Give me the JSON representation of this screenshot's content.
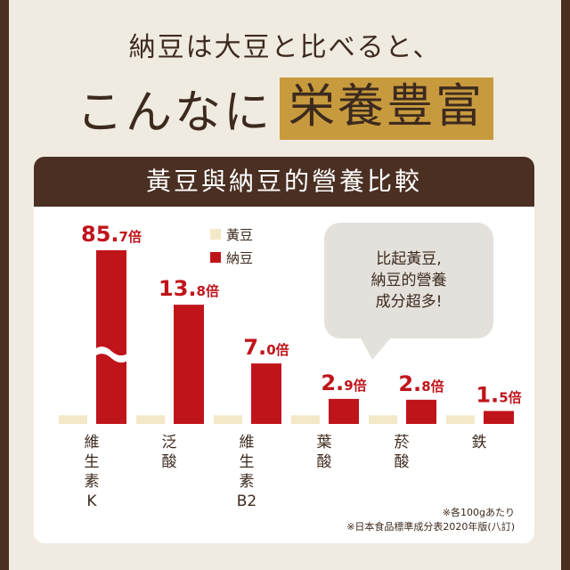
{
  "headline": {
    "line1": "納豆は大豆と比べると、",
    "line2_plain": "こんなに",
    "line2_highlight": "栄養豊富"
  },
  "card": {
    "title": "黃豆與納豆的營養比較"
  },
  "bubble": {
    "text_lines": [
      "比起黃豆,",
      "納豆的營養",
      "成分超多!"
    ]
  },
  "notes": {
    "line1": "※各100gあたり",
    "line2": "※日本食品標準成分表2020年版(八訂)"
  },
  "colors": {
    "soy": "#f3e8c8",
    "natto": "#c0141b",
    "brown": "#4a2f22",
    "gold": "#c79a3e"
  },
  "chart_data": {
    "type": "bar",
    "title": "黃豆與納豆的營養比較",
    "series": [
      {
        "name": "黃豆",
        "color": "#f3e8c8",
        "values": [
          1,
          1,
          1,
          1,
          1,
          1
        ]
      },
      {
        "name": "納豆",
        "color": "#c0141b",
        "values": [
          85.7,
          13.8,
          7.0,
          2.9,
          2.8,
          1.5
        ]
      }
    ],
    "categories": [
      {
        "name": "維生素K",
        "label_lines": [
          "維",
          "生",
          "素",
          "K"
        ],
        "big": "85.",
        "small": "7倍",
        "broken_axis": true
      },
      {
        "name": "泛酸",
        "label_lines": [
          "泛",
          "酸"
        ],
        "big": "13.",
        "small": "8倍",
        "broken_axis": false
      },
      {
        "name": "維生素B2",
        "label_lines": [
          "維",
          "生",
          "素",
          "B2"
        ],
        "big": "7.",
        "small": "0倍",
        "broken_axis": false
      },
      {
        "name": "葉酸",
        "label_lines": [
          "葉",
          "酸"
        ],
        "big": "2.",
        "small": "9倍",
        "broken_axis": false
      },
      {
        "name": "菸酸",
        "label_lines": [
          "菸",
          "酸"
        ],
        "big": "2.",
        "small": "8倍",
        "broken_axis": false
      },
      {
        "name": "鉄",
        "label_lines": [
          "鉄"
        ],
        "big": "1.",
        "small": "5倍",
        "broken_axis": false
      }
    ]
  }
}
